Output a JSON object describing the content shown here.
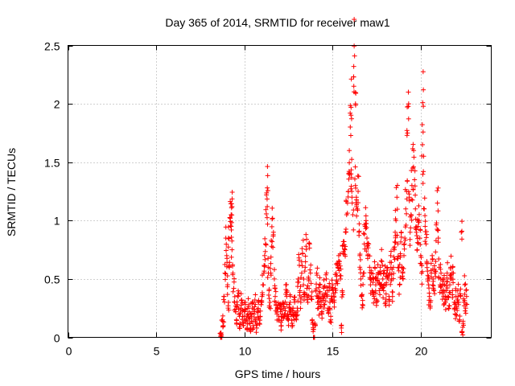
{
  "chart_data": {
    "type": "scatter",
    "title": "Day 365 of 2014, SRMTID for receiver maw1",
    "xlabel": "GPS time / hours",
    "ylabel": "SRMTID / TECUs",
    "xlim": [
      0,
      24
    ],
    "ylim": [
      0,
      2.5
    ],
    "xticks": [
      0,
      5,
      10,
      15,
      20
    ],
    "xtick_labels": [
      "0",
      "5",
      "10",
      "15",
      "20"
    ],
    "yticks": [
      0,
      0.5,
      1,
      1.5,
      2,
      2.5
    ],
    "ytick_labels": [
      "0",
      "0.5",
      "1",
      "1.5",
      "2",
      "2.5"
    ],
    "grid": true,
    "marker": "+",
    "color": "#ff0000",
    "series": [
      {
        "name": "SRMTID",
        "points": [
          [
            8.65,
            0.0
          ],
          [
            8.65,
            0.01
          ],
          [
            8.7,
            0.02
          ],
          [
            8.75,
            0.15
          ],
          [
            8.8,
            0.1
          ],
          [
            8.85,
            0.35
          ],
          [
            8.9,
            0.55
          ],
          [
            8.95,
            0.85
          ],
          [
            9.0,
            0.7
          ],
          [
            9.05,
            0.45
          ],
          [
            9.1,
            0.3
          ],
          [
            9.1,
            0.85
          ],
          [
            9.15,
            0.6
          ],
          [
            9.2,
            1.02
          ],
          [
            9.25,
            0.95
          ],
          [
            9.25,
            1.05
          ],
          [
            9.3,
            1.12
          ],
          [
            9.3,
            0.75
          ],
          [
            9.35,
            0.55
          ],
          [
            9.4,
            0.42
          ],
          [
            9.45,
            0.3
          ],
          [
            9.5,
            0.22
          ],
          [
            9.55,
            0.15
          ],
          [
            9.6,
            0.28
          ],
          [
            9.65,
            0.35
          ],
          [
            9.7,
            0.2
          ],
          [
            9.75,
            0.12
          ],
          [
            9.8,
            0.25
          ],
          [
            9.85,
            0.32
          ],
          [
            9.9,
            0.18
          ],
          [
            9.95,
            0.1
          ],
          [
            10.0,
            0.22
          ],
          [
            10.05,
            0.3
          ],
          [
            10.1,
            0.15
          ],
          [
            10.15,
            0.08
          ],
          [
            10.2,
            0.2
          ],
          [
            10.25,
            0.28
          ],
          [
            10.3,
            0.12
          ],
          [
            10.35,
            0.05
          ],
          [
            10.4,
            0.18
          ],
          [
            10.45,
            0.25
          ],
          [
            10.5,
            0.1
          ],
          [
            10.55,
            0.2
          ],
          [
            10.6,
            0.32
          ],
          [
            10.65,
            0.15
          ],
          [
            10.7,
            0.08
          ],
          [
            10.75,
            0.22
          ],
          [
            10.8,
            0.3
          ],
          [
            10.85,
            0.12
          ],
          [
            10.9,
            0.18
          ],
          [
            10.95,
            0.28
          ],
          [
            11.0,
            0.35
          ],
          [
            11.05,
            0.45
          ],
          [
            11.1,
            0.55
          ],
          [
            11.15,
            0.7
          ],
          [
            11.2,
            0.8
          ],
          [
            11.25,
            1.22
          ],
          [
            11.3,
            1.28
          ],
          [
            11.3,
            1.12
          ],
          [
            11.35,
            0.6
          ],
          [
            11.4,
            0.4
          ],
          [
            11.45,
            0.3
          ],
          [
            11.5,
            0.55
          ],
          [
            11.55,
            0.78
          ],
          [
            11.6,
            1.02
          ],
          [
            11.65,
            0.9
          ],
          [
            11.7,
            0.5
          ],
          [
            11.75,
            0.35
          ],
          [
            11.8,
            0.28
          ],
          [
            11.85,
            0.2
          ],
          [
            11.9,
            0.25
          ],
          [
            11.95,
            0.15
          ],
          [
            12.0,
            0.28
          ],
          [
            12.05,
            0.22
          ],
          [
            12.1,
            0.1
          ],
          [
            12.15,
            0.2
          ],
          [
            12.2,
            0.3
          ],
          [
            12.25,
            0.18
          ],
          [
            12.3,
            0.25
          ],
          [
            12.35,
            0.45
          ],
          [
            12.4,
            0.35
          ],
          [
            12.45,
            0.2
          ],
          [
            12.5,
            0.15
          ],
          [
            12.55,
            0.28
          ],
          [
            12.6,
            0.3
          ],
          [
            12.65,
            0.2
          ],
          [
            12.7,
            0.12
          ],
          [
            12.75,
            0.25
          ],
          [
            12.8,
            0.18
          ],
          [
            12.85,
            0.3
          ],
          [
            12.9,
            0.2
          ],
          [
            12.95,
            0.15
          ],
          [
            13.0,
            0.25
          ],
          [
            13.05,
            0.5
          ],
          [
            13.1,
            0.68
          ],
          [
            13.15,
            0.4
          ],
          [
            13.2,
            0.3
          ],
          [
            13.25,
            0.55
          ],
          [
            13.3,
            0.72
          ],
          [
            13.35,
            0.45
          ],
          [
            13.4,
            0.35
          ],
          [
            13.45,
            0.6
          ],
          [
            13.5,
            0.78
          ],
          [
            13.55,
            0.42
          ],
          [
            13.6,
            0.3
          ],
          [
            13.65,
            0.5
          ],
          [
            13.7,
            0.8
          ],
          [
            13.75,
            0.55
          ],
          [
            13.8,
            0.35
          ],
          [
            13.85,
            0.15
          ],
          [
            13.9,
            0.05
          ],
          [
            13.95,
            0.0
          ],
          [
            14.0,
            0.12
          ],
          [
            14.05,
            0.4
          ],
          [
            14.1,
            0.55
          ],
          [
            14.15,
            0.3
          ],
          [
            14.2,
            0.25
          ],
          [
            14.25,
            0.38
          ],
          [
            14.3,
            0.45
          ],
          [
            14.35,
            0.3
          ],
          [
            14.4,
            0.2
          ],
          [
            14.45,
            0.35
          ],
          [
            14.5,
            0.42
          ],
          [
            14.55,
            0.28
          ],
          [
            14.6,
            0.38
          ],
          [
            14.65,
            0.5
          ],
          [
            14.7,
            0.35
          ],
          [
            14.75,
            0.25
          ],
          [
            14.8,
            0.4
          ],
          [
            14.85,
            0.3
          ],
          [
            14.9,
            0.18
          ],
          [
            14.95,
            0.32
          ],
          [
            15.0,
            0.45
          ],
          [
            15.05,
            0.38
          ],
          [
            15.1,
            0.3
          ],
          [
            15.15,
            0.42
          ],
          [
            15.2,
            0.55
          ],
          [
            15.25,
            0.48
          ],
          [
            15.3,
            0.6
          ],
          [
            15.35,
            0.7
          ],
          [
            15.4,
            0.65
          ],
          [
            15.45,
            0.5
          ],
          [
            15.5,
            0.08
          ],
          [
            15.55,
            0.4
          ],
          [
            15.6,
            0.72
          ],
          [
            15.65,
            0.82
          ],
          [
            15.7,
            0.75
          ],
          [
            15.75,
            0.9
          ],
          [
            15.8,
            1.05
          ],
          [
            15.85,
            1.15
          ],
          [
            15.9,
            1.25
          ],
          [
            15.95,
            1.6
          ],
          [
            16.0,
            1.92
          ],
          [
            16.05,
            1.97
          ],
          [
            16.05,
            1.4
          ],
          [
            16.1,
            1.2
          ],
          [
            16.15,
            1.05
          ],
          [
            16.2,
            2.23
          ],
          [
            16.25,
            2.41
          ],
          [
            16.3,
            2.0
          ],
          [
            16.3,
            1.3
          ],
          [
            16.35,
            1.2
          ],
          [
            16.4,
            1.1
          ],
          [
            16.45,
            1.25
          ],
          [
            16.5,
            0.9
          ],
          [
            16.55,
            0.7
          ],
          [
            16.6,
            0.5
          ],
          [
            16.65,
            0.35
          ],
          [
            16.7,
            0.28
          ],
          [
            16.75,
            0.55
          ],
          [
            16.8,
            0.8
          ],
          [
            16.85,
            0.95
          ],
          [
            16.9,
            1.0
          ],
          [
            16.95,
            0.85
          ],
          [
            17.0,
            0.7
          ],
          [
            17.05,
            0.8
          ],
          [
            17.1,
            0.6
          ],
          [
            17.15,
            0.45
          ],
          [
            17.2,
            0.55
          ],
          [
            17.25,
            0.4
          ],
          [
            17.3,
            0.5
          ],
          [
            17.35,
            0.35
          ],
          [
            17.4,
            0.6
          ],
          [
            17.45,
            0.45
          ],
          [
            17.5,
            0.3
          ],
          [
            17.55,
            0.5
          ],
          [
            17.6,
            0.55
          ],
          [
            17.65,
            0.4
          ],
          [
            17.7,
            0.6
          ],
          [
            17.75,
            0.45
          ],
          [
            17.8,
            0.65
          ],
          [
            17.85,
            0.5
          ],
          [
            17.9,
            0.4
          ],
          [
            17.95,
            0.55
          ],
          [
            18.0,
            0.3
          ],
          [
            18.05,
            0.45
          ],
          [
            18.1,
            0.6
          ],
          [
            18.15,
            0.5
          ],
          [
            18.2,
            0.35
          ],
          [
            18.25,
            0.55
          ],
          [
            18.3,
            0.7
          ],
          [
            18.35,
            0.5
          ],
          [
            18.4,
            0.35
          ],
          [
            18.45,
            0.6
          ],
          [
            18.5,
            0.75
          ],
          [
            18.55,
            0.9
          ],
          [
            18.6,
            1.0
          ],
          [
            18.65,
            1.2
          ],
          [
            18.7,
            0.8
          ],
          [
            18.75,
            0.6
          ],
          [
            18.8,
            0.45
          ],
          [
            18.85,
            0.7
          ],
          [
            18.9,
            0.9
          ],
          [
            18.95,
            0.6
          ],
          [
            19.0,
            0.5
          ],
          [
            19.05,
            0.7
          ],
          [
            19.1,
            0.85
          ],
          [
            19.15,
            1.1
          ],
          [
            19.2,
            1.25
          ],
          [
            19.25,
            1.75
          ],
          [
            19.3,
            2.1
          ],
          [
            19.35,
            1.2
          ],
          [
            19.4,
            0.9
          ],
          [
            19.45,
            1.05
          ],
          [
            19.5,
            1.3
          ],
          [
            19.55,
            1.45
          ],
          [
            19.6,
            1.6
          ],
          [
            19.65,
            1.35
          ],
          [
            19.7,
            1.1
          ],
          [
            19.75,
            0.9
          ],
          [
            19.8,
            0.75
          ],
          [
            19.85,
            0.95
          ],
          [
            19.9,
            1.0
          ],
          [
            19.95,
            0.85
          ],
          [
            20.0,
            0.7
          ],
          [
            20.05,
            0.55
          ],
          [
            20.1,
            1.65
          ],
          [
            20.15,
            2.12
          ],
          [
            20.15,
            1.42
          ],
          [
            20.2,
            1.1
          ],
          [
            20.25,
            0.95
          ],
          [
            20.3,
            0.8
          ],
          [
            20.35,
            0.65
          ],
          [
            20.4,
            0.5
          ],
          [
            20.45,
            0.45
          ],
          [
            20.5,
            0.35
          ],
          [
            20.55,
            0.3
          ],
          [
            20.6,
            0.55
          ],
          [
            20.65,
            0.7
          ],
          [
            20.7,
            0.5
          ],
          [
            20.75,
            0.4
          ],
          [
            20.8,
            0.55
          ],
          [
            20.85,
            0.65
          ],
          [
            20.9,
            0.98
          ],
          [
            20.95,
            1.15
          ],
          [
            21.0,
            0.85
          ],
          [
            21.05,
            0.6
          ],
          [
            21.1,
            0.45
          ],
          [
            21.15,
            0.55
          ],
          [
            21.2,
            0.4
          ],
          [
            21.25,
            0.5
          ],
          [
            21.3,
            0.35
          ],
          [
            21.35,
            0.45
          ],
          [
            21.4,
            0.3
          ],
          [
            21.45,
            0.4
          ],
          [
            21.5,
            0.55
          ],
          [
            21.55,
            0.35
          ],
          [
            21.6,
            0.25
          ],
          [
            21.65,
            0.45
          ],
          [
            21.7,
            0.6
          ],
          [
            21.75,
            0.5
          ],
          [
            21.8,
            0.4
          ],
          [
            21.85,
            0.55
          ],
          [
            21.9,
            0.3
          ],
          [
            21.95,
            0.2
          ],
          [
            22.0,
            0.35
          ],
          [
            22.05,
            0.25
          ],
          [
            22.1,
            0.4
          ],
          [
            22.15,
            0.3
          ],
          [
            22.2,
            0.15
          ],
          [
            22.25,
            0.35
          ],
          [
            22.3,
            0.9
          ],
          [
            22.35,
            0.05
          ],
          [
            22.4,
            0.12
          ],
          [
            22.45,
            0.3
          ],
          [
            22.5,
            0.45
          ],
          [
            22.55,
            0.25
          ],
          [
            22.6,
            0.35
          ]
        ]
      }
    ]
  }
}
